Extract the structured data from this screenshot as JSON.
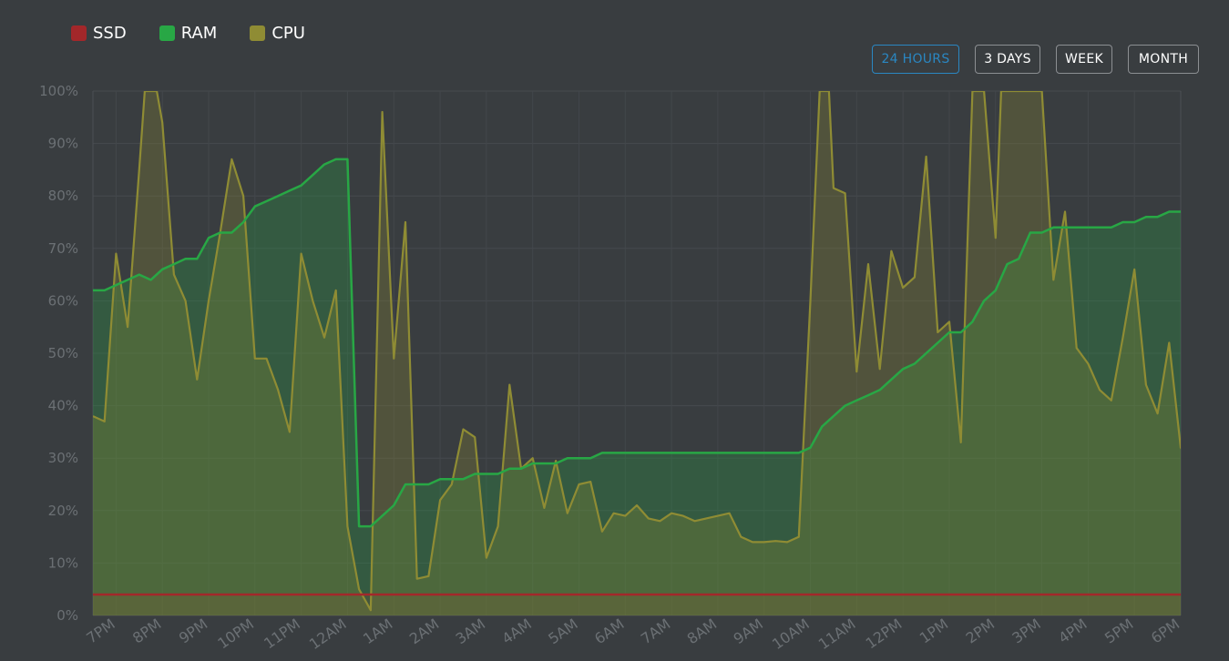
{
  "legend": [
    {
      "label": "SSD",
      "color": "#a3272a"
    },
    {
      "label": "RAM",
      "color": "#28a745"
    },
    {
      "label": "CPU",
      "color": "#8f8c34"
    }
  ],
  "range_buttons": [
    {
      "label": "24 HOURS",
      "active": true
    },
    {
      "label": "3 DAYS",
      "active": false
    },
    {
      "label": "WEEK",
      "active": false
    },
    {
      "label": "MONTH",
      "active": false
    }
  ],
  "chart_data": {
    "type": "area",
    "x_range": [
      18.5,
      42
    ],
    "ylim": [
      0,
      100
    ],
    "y_ticks": [
      0,
      10,
      20,
      30,
      40,
      50,
      60,
      70,
      80,
      90,
      100
    ],
    "y_tick_labels": [
      "0%",
      "10%",
      "20%",
      "30%",
      "40%",
      "50%",
      "60%",
      "70%",
      "80%",
      "90%",
      "100%"
    ],
    "x_ticks": [
      19,
      20,
      21,
      22,
      23,
      24,
      25,
      26,
      27,
      28,
      29,
      30,
      31,
      32,
      33,
      34,
      35,
      36,
      37,
      38,
      39,
      40,
      41,
      42
    ],
    "x_tick_labels": [
      "7PM",
      "8PM",
      "9PM",
      "10PM",
      "11PM",
      "12AM",
      "1AM",
      "2AM",
      "3AM",
      "4AM",
      "5AM",
      "6AM",
      "7AM",
      "8AM",
      "9AM",
      "10AM",
      "11AM",
      "12PM",
      "1PM",
      "2PM",
      "3PM",
      "4PM",
      "5PM",
      "6PM"
    ],
    "grid": true,
    "legend_position": "top-left",
    "series": [
      {
        "name": "SSD",
        "color": "#a3272a",
        "fill": "rgba(163,39,42,0.22)",
        "points": [
          [
            18.5,
            4
          ],
          [
            42,
            4
          ]
        ]
      },
      {
        "name": "RAM",
        "color": "#28a745",
        "fill": "rgba(40,167,69,0.28)",
        "points": [
          [
            18.5,
            62
          ],
          [
            18.75,
            62
          ],
          [
            19,
            63
          ],
          [
            19.25,
            64
          ],
          [
            19.5,
            65
          ],
          [
            19.75,
            64
          ],
          [
            20,
            66
          ],
          [
            20.25,
            67
          ],
          [
            20.5,
            68
          ],
          [
            20.75,
            68
          ],
          [
            21,
            72
          ],
          [
            21.25,
            73
          ],
          [
            21.5,
            73
          ],
          [
            21.75,
            75
          ],
          [
            22,
            78
          ],
          [
            22.25,
            79
          ],
          [
            22.5,
            80
          ],
          [
            22.75,
            81
          ],
          [
            23,
            82
          ],
          [
            23.25,
            84
          ],
          [
            23.5,
            86
          ],
          [
            23.75,
            87
          ],
          [
            24,
            87
          ],
          [
            24.25,
            17
          ],
          [
            24.5,
            17
          ],
          [
            24.75,
            19
          ],
          [
            25,
            21
          ],
          [
            25.25,
            25
          ],
          [
            25.5,
            25
          ],
          [
            25.75,
            25
          ],
          [
            26,
            26
          ],
          [
            26.25,
            26
          ],
          [
            26.5,
            26
          ],
          [
            26.75,
            27
          ],
          [
            27,
            27
          ],
          [
            27.25,
            27
          ],
          [
            27.5,
            28
          ],
          [
            27.75,
            28
          ],
          [
            28,
            29
          ],
          [
            28.25,
            29
          ],
          [
            28.5,
            29
          ],
          [
            28.75,
            30
          ],
          [
            29,
            30
          ],
          [
            29.25,
            30
          ],
          [
            29.5,
            31
          ],
          [
            30,
            31
          ],
          [
            31,
            31
          ],
          [
            32,
            31
          ],
          [
            33,
            31
          ],
          [
            33.75,
            31
          ],
          [
            34,
            32
          ],
          [
            34.25,
            36
          ],
          [
            34.5,
            38
          ],
          [
            34.75,
            40
          ],
          [
            35,
            41
          ],
          [
            35.25,
            42
          ],
          [
            35.5,
            43
          ],
          [
            35.75,
            45
          ],
          [
            36,
            47
          ],
          [
            36.25,
            48
          ],
          [
            36.5,
            50
          ],
          [
            36.75,
            52
          ],
          [
            37,
            54
          ],
          [
            37.25,
            54
          ],
          [
            37.5,
            56
          ],
          [
            37.75,
            60
          ],
          [
            38,
            62
          ],
          [
            38.25,
            67
          ],
          [
            38.5,
            68
          ],
          [
            38.75,
            73
          ],
          [
            39,
            73
          ],
          [
            39.25,
            74
          ],
          [
            39.5,
            74
          ],
          [
            39.75,
            74
          ],
          [
            40,
            74
          ],
          [
            40.25,
            74
          ],
          [
            40.5,
            74
          ],
          [
            40.75,
            75
          ],
          [
            41,
            75
          ],
          [
            41.25,
            76
          ],
          [
            41.5,
            76
          ],
          [
            41.75,
            77
          ],
          [
            42,
            77
          ]
        ]
      },
      {
        "name": "CPU",
        "color": "#8f8c34",
        "fill": "rgba(143,140,52,0.28)",
        "points": [
          [
            18.5,
            38
          ],
          [
            18.75,
            37
          ],
          [
            19,
            69
          ],
          [
            19.25,
            55
          ],
          [
            19.5,
            85
          ],
          [
            19.62,
            100
          ],
          [
            19.88,
            100
          ],
          [
            20,
            94
          ],
          [
            20.25,
            65
          ],
          [
            20.5,
            60
          ],
          [
            20.75,
            45
          ],
          [
            21,
            60
          ],
          [
            21.25,
            73
          ],
          [
            21.5,
            87
          ],
          [
            21.75,
            80
          ],
          [
            22,
            49
          ],
          [
            22.25,
            49
          ],
          [
            22.5,
            43
          ],
          [
            22.75,
            35
          ],
          [
            23,
            69
          ],
          [
            23.25,
            60
          ],
          [
            23.5,
            53
          ],
          [
            23.75,
            62
          ],
          [
            24,
            17
          ],
          [
            24.25,
            5
          ],
          [
            24.5,
            1
          ],
          [
            24.75,
            96
          ],
          [
            25,
            49
          ],
          [
            25.25,
            75
          ],
          [
            25.5,
            7
          ],
          [
            25.75,
            7.5
          ],
          [
            26,
            22
          ],
          [
            26.25,
            25
          ],
          [
            26.5,
            35.5
          ],
          [
            26.75,
            34
          ],
          [
            27,
            11
          ],
          [
            27.25,
            17
          ],
          [
            27.5,
            44
          ],
          [
            27.75,
            28
          ],
          [
            28,
            30
          ],
          [
            28.25,
            20.5
          ],
          [
            28.5,
            29.5
          ],
          [
            28.75,
            19.5
          ],
          [
            29,
            25
          ],
          [
            29.25,
            25.5
          ],
          [
            29.5,
            16
          ],
          [
            29.75,
            19.5
          ],
          [
            30,
            19
          ],
          [
            30.25,
            21
          ],
          [
            30.5,
            18.5
          ],
          [
            30.75,
            18
          ],
          [
            31,
            19.5
          ],
          [
            31.25,
            19
          ],
          [
            31.5,
            18
          ],
          [
            31.75,
            18.5
          ],
          [
            32,
            19
          ],
          [
            32.25,
            19.5
          ],
          [
            32.5,
            15
          ],
          [
            32.75,
            14
          ],
          [
            33,
            14
          ],
          [
            33.25,
            14.2
          ],
          [
            33.5,
            14
          ],
          [
            33.75,
            15
          ],
          [
            34,
            60
          ],
          [
            34.2,
            100
          ],
          [
            34.4,
            100
          ],
          [
            34.5,
            81.5
          ],
          [
            34.75,
            80.5
          ],
          [
            35,
            46.5
          ],
          [
            35.25,
            67
          ],
          [
            35.5,
            47
          ],
          [
            35.75,
            69.5
          ],
          [
            36,
            62.5
          ],
          [
            36.25,
            64.5
          ],
          [
            36.5,
            87.5
          ],
          [
            36.75,
            54
          ],
          [
            37,
            56
          ],
          [
            37.25,
            33
          ],
          [
            37.5,
            100
          ],
          [
            37.75,
            100
          ],
          [
            38,
            72
          ],
          [
            38.12,
            100
          ],
          [
            39,
            100
          ],
          [
            39.25,
            64
          ],
          [
            39.5,
            77
          ],
          [
            39.75,
            51
          ],
          [
            40,
            48
          ],
          [
            40.25,
            43
          ],
          [
            40.5,
            41
          ],
          [
            40.75,
            53
          ],
          [
            41,
            66
          ],
          [
            41.25,
            44
          ],
          [
            41.5,
            38.5
          ],
          [
            41.75,
            52
          ],
          [
            42,
            32
          ],
          [
            42.25,
            29
          ]
        ]
      }
    ]
  }
}
